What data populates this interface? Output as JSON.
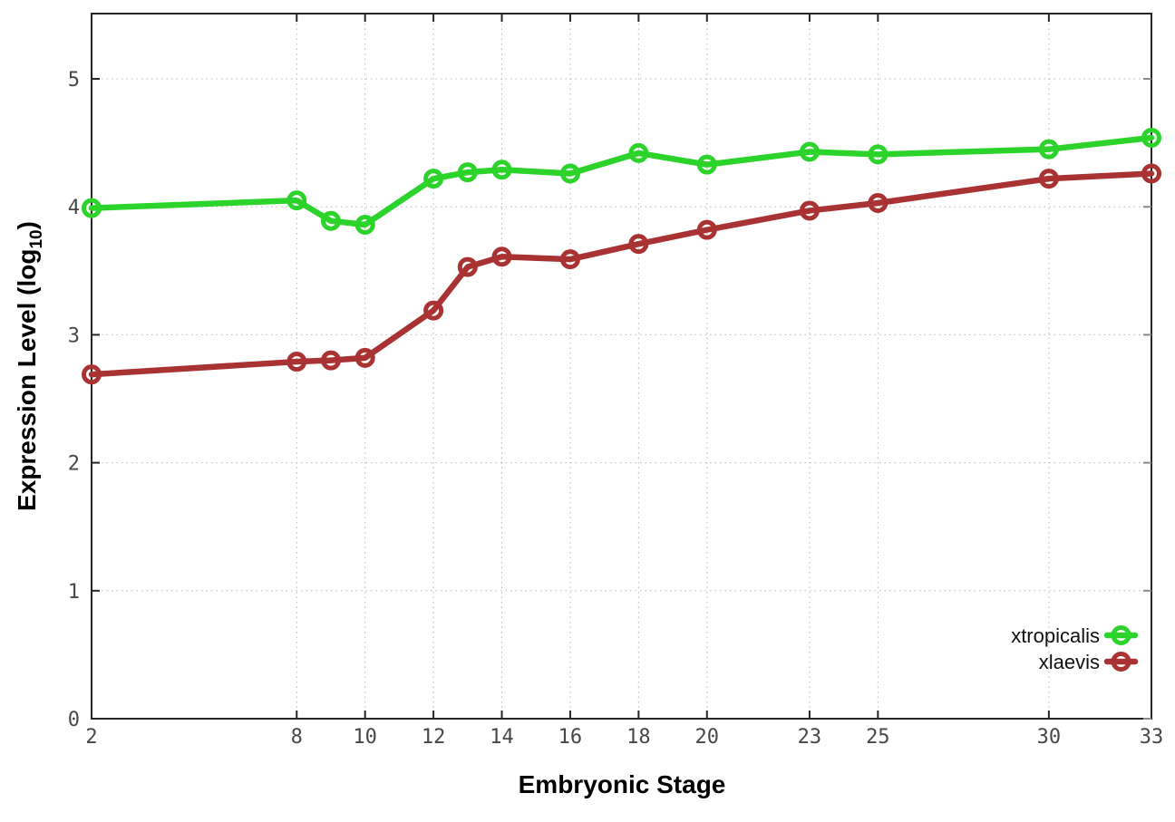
{
  "chart_data": {
    "type": "line",
    "title": "",
    "xlabel": "Embryonic Stage",
    "ylabel": "Expression Level (log10)",
    "ylabel_parts": {
      "main": "Expression Level (log",
      "sub": "10",
      "close": ")"
    },
    "xlim": [
      2,
      33
    ],
    "ylim": [
      0,
      5.51
    ],
    "x_ticks": [
      2,
      8,
      10,
      12,
      14,
      16,
      18,
      20,
      23,
      25,
      30,
      33
    ],
    "y_ticks": [
      0,
      1,
      2,
      3,
      4,
      5
    ],
    "grid": true,
    "grid_style": "dotted",
    "legend_position": "bottom-right",
    "x": [
      2,
      8,
      9,
      10,
      12,
      13,
      14,
      16,
      18,
      20,
      23,
      25,
      30,
      33
    ],
    "series": [
      {
        "name": "xtropicalis",
        "color": "#2bd32b",
        "marker": "open-circle",
        "values": [
          3.99,
          4.05,
          3.89,
          3.86,
          4.22,
          4.27,
          4.29,
          4.26,
          4.42,
          4.33,
          4.43,
          4.41,
          4.45,
          4.54
        ]
      },
      {
        "name": "xlaevis",
        "color": "#a93232",
        "marker": "open-circle",
        "values": [
          2.69,
          2.79,
          2.8,
          2.82,
          3.19,
          3.53,
          3.61,
          3.59,
          3.71,
          3.82,
          3.97,
          4.03,
          4.22,
          4.26
        ]
      }
    ],
    "colors": {
      "border": "#262626",
      "grid": "#b8b8b8",
      "tick_label": "#474747"
    }
  }
}
